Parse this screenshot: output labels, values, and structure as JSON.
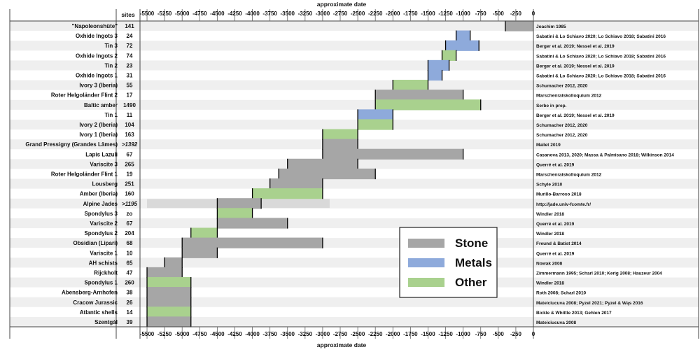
{
  "chart_data": {
    "type": "gantt",
    "title": "",
    "xlabel": "approximate date",
    "sites_header": "sites",
    "xlim": [
      -5600,
      0
    ],
    "ticks": [
      -5500,
      -5250,
      -5000,
      -4750,
      -4500,
      -4250,
      -4000,
      -3750,
      -3500,
      -3250,
      -3000,
      -2750,
      -2500,
      -2250,
      -2000,
      -1750,
      -1500,
      -1250,
      -1000,
      -750,
      -500,
      -250,
      0
    ],
    "tick_labels": [
      "-5500",
      "-5250",
      "-5000",
      "-4750",
      "-4500",
      "-4250",
      "-4000",
      "-3750",
      "-3500",
      "-3250",
      "-3000",
      "-2750",
      "-2500",
      "-2250",
      "-2000",
      "-1750",
      "-1500",
      "-1250",
      "-1000",
      "-750",
      "-500",
      "-250",
      "0"
    ],
    "colors": {
      "Stone": "#a6a6a6",
      "Metals": "#8eaadb",
      "Other": "#a9d18e",
      "Uncertain": "#d9d9d9"
    },
    "legend": {
      "position": "lower-right",
      "items": [
        {
          "category": "Stone",
          "label": "Stone"
        },
        {
          "category": "Metals",
          "label": "Metals"
        },
        {
          "category": "Other",
          "label": "Other"
        }
      ]
    },
    "rows": [
      {
        "name": "\"Napoleonshüte\"",
        "sites": "141",
        "ref": "Joachim 1985",
        "spans": [
          {
            "start": -400,
            "end": 0,
            "category": "Stone",
            "mark": "start"
          }
        ]
      },
      {
        "name": "Oxhide Ingots 3",
        "sites": "24",
        "ref": "Sabatini & Lo Schiavo 2020; Lo Schiavo 2018; Sabatini 2016",
        "spans": [
          {
            "start": -1100,
            "end": -900,
            "category": "Metals",
            "mark": "both"
          }
        ]
      },
      {
        "name": "Tin 3",
        "sites": "72",
        "ref": "Berger et al. 2019; Nessel et al. 2019",
        "spans": [
          {
            "start": -1250,
            "end": -775,
            "category": "Metals",
            "mark": "both"
          }
        ]
      },
      {
        "name": "Oxhide Ingots 2",
        "sites": "74",
        "ref": "Sabatini & Lo Schiavo 2020; Lo Schiavo 2018; Sabatini 2016",
        "spans": [
          {
            "start": -1300,
            "end": -1100,
            "category": "Other",
            "mark": "both"
          }
        ]
      },
      {
        "name": "Tin 2",
        "sites": "23",
        "ref": "Berger et al. 2019; Nessel et al. 2019",
        "spans": [
          {
            "start": -1500,
            "end": -1200,
            "category": "Metals",
            "mark": "both"
          }
        ]
      },
      {
        "name": "Oxhide Ingots 1",
        "sites": "31",
        "ref": "Sabatini & Lo Schiavo 2020; Lo Schiavo 2018; Sabatini 2016",
        "spans": [
          {
            "start": -1500,
            "end": -1300,
            "category": "Metals",
            "mark": "both"
          }
        ]
      },
      {
        "name": "Ivory 3  (Iberia)",
        "sites": "55",
        "ref": "Schumacher 2012, 2020",
        "spans": [
          {
            "start": -2000,
            "end": -1500,
            "category": "Other",
            "mark": "both"
          }
        ]
      },
      {
        "name": "Roter Helgoländer Flint 2",
        "sites": "17",
        "ref": "Marschenratskolloquium 2012",
        "spans": [
          {
            "start": -2250,
            "end": -1000,
            "category": "Stone",
            "mark": "both"
          }
        ]
      },
      {
        "name": "Baltic amber",
        "sites": "1490",
        "ref": "Serbe in prep.",
        "spans": [
          {
            "start": -2250,
            "end": -750,
            "category": "Other",
            "mark": "both"
          }
        ]
      },
      {
        "name": "Tin 1",
        "sites": "11",
        "ref": "Berger et al. 2019; Nessel et al. 2019",
        "spans": [
          {
            "start": -2500,
            "end": -2000,
            "category": "Metals",
            "mark": "both"
          }
        ]
      },
      {
        "name": "Ivory 2  (Iberia)",
        "sites": "104",
        "ref": "Schumacher 2012, 2020",
        "spans": [
          {
            "start": -2500,
            "end": -2000,
            "category": "Other",
            "mark": "both"
          }
        ]
      },
      {
        "name": "Ivory 1 (Iberia)",
        "sites": "163",
        "ref": "Schumacher 2012, 2020",
        "spans": [
          {
            "start": -3000,
            "end": -2500,
            "category": "Other",
            "mark": "both"
          }
        ]
      },
      {
        "name": "Grand Pressigny (Grandes Lâmes)",
        "sites": ">1392",
        "ref": "Mallet 2019",
        "spans": [
          {
            "start": -3000,
            "end": -2500,
            "category": "Stone",
            "mark": "both"
          }
        ]
      },
      {
        "name": "Lapis Lazuli",
        "sites": "67",
        "ref": "Casanova 2013, 2020; Massa & Palmisano 2018; Wilkinson 2014",
        "spans": [
          {
            "start": -3000,
            "end": -1000,
            "category": "Stone",
            "mark": "both"
          }
        ]
      },
      {
        "name": "Variscite 3",
        "sites": "265",
        "ref": "Querré et al. 2019",
        "spans": [
          {
            "start": -3500,
            "end": -2500,
            "category": "Stone",
            "mark": "both"
          }
        ]
      },
      {
        "name": "Roter Helgoländer Flint 1",
        "sites": "19",
        "ref": "Marschenratskolloquium 2012",
        "spans": [
          {
            "start": -3625,
            "end": -2250,
            "category": "Stone",
            "mark": "both"
          }
        ]
      },
      {
        "name": "Lousberg",
        "sites": "251",
        "ref": "Schyle 2010",
        "spans": [
          {
            "start": -3750,
            "end": -3000,
            "category": "Stone",
            "mark": "both"
          }
        ]
      },
      {
        "name": "Amber (Iberia)",
        "sites": "160",
        "ref": "Murillo-Barroso 2018",
        "spans": [
          {
            "start": -4000,
            "end": -3000,
            "category": "Other",
            "mark": "both"
          }
        ]
      },
      {
        "name": "Alpine Jades",
        "sites": ">1195",
        "ref": "http://jade.univ-fcomte.fr/",
        "spans": [
          {
            "start": -5500,
            "end": -2900,
            "category": "Uncertain",
            "mark": "none"
          },
          {
            "start": -4500,
            "end": -3875,
            "category": "Stone",
            "mark": "both"
          }
        ]
      },
      {
        "name": "Spondylus 3",
        "sites": "zo",
        "ref": "Windler 2018",
        "spans": [
          {
            "start": -4500,
            "end": -4000,
            "category": "Other",
            "mark": "both"
          }
        ]
      },
      {
        "name": "Variscite 2",
        "sites": "67",
        "ref": "Querré et al. 2019",
        "spans": [
          {
            "start": -4500,
            "end": -3500,
            "category": "Stone",
            "mark": "both"
          }
        ]
      },
      {
        "name": "Spondylus 2",
        "sites": "204",
        "ref": "Windler 2018",
        "spans": [
          {
            "start": -4875,
            "end": -4500,
            "category": "Other",
            "mark": "both"
          }
        ]
      },
      {
        "name": "Obsidian (Lipari)",
        "sites": "68",
        "ref": "Freund & Batist 2014",
        "spans": [
          {
            "start": -5000,
            "end": -3000,
            "category": "Stone",
            "mark": "both"
          }
        ]
      },
      {
        "name": "Variscite 1",
        "sites": "10",
        "ref": "Querré et al. 2019",
        "spans": [
          {
            "start": -5000,
            "end": -4500,
            "category": "Stone",
            "mark": "both"
          }
        ]
      },
      {
        "name": "AH schists",
        "sites": "65",
        "ref": "Nowak 2008",
        "spans": [
          {
            "start": -5250,
            "end": -5000,
            "category": "Stone",
            "mark": "both"
          }
        ]
      },
      {
        "name": "Rijckholt",
        "sites": "47",
        "ref": "Zimmermann 1995; Scharl 2010; Kerig 2008; Hauzeur 2004",
        "spans": [
          {
            "start": -5500,
            "end": -5000,
            "category": "Stone",
            "mark": "both"
          }
        ]
      },
      {
        "name": "Spondylus 1",
        "sites": "260",
        "ref": "Windler 2018",
        "spans": [
          {
            "start": -5500,
            "end": -4875,
            "category": "Other",
            "mark": "both"
          }
        ]
      },
      {
        "name": "Abensberg-Arnhofen",
        "sites": "38",
        "ref": "Roth 2008; Scharl 2010",
        "spans": [
          {
            "start": -5500,
            "end": -4875,
            "category": "Stone",
            "mark": "both"
          }
        ]
      },
      {
        "name": "Cracow Jurassic",
        "sites": "26",
        "ref": "Mateiciucuva 2008; Pyzel 2021; Pyzel & Wąs 2016",
        "spans": [
          {
            "start": -5500,
            "end": -4875,
            "category": "Stone",
            "mark": "both"
          }
        ]
      },
      {
        "name": "Atlantic shells",
        "sites": "14",
        "ref": "Bickle & Whittle 2013; Gehlen 2017",
        "spans": [
          {
            "start": -5500,
            "end": -4875,
            "category": "Other",
            "mark": "both"
          }
        ]
      },
      {
        "name": "Szentgàl",
        "sites": "39",
        "ref": "Mateiciucuva 2008",
        "spans": [
          {
            "start": -5500,
            "end": -4875,
            "category": "Stone",
            "mark": "both"
          }
        ]
      }
    ]
  }
}
